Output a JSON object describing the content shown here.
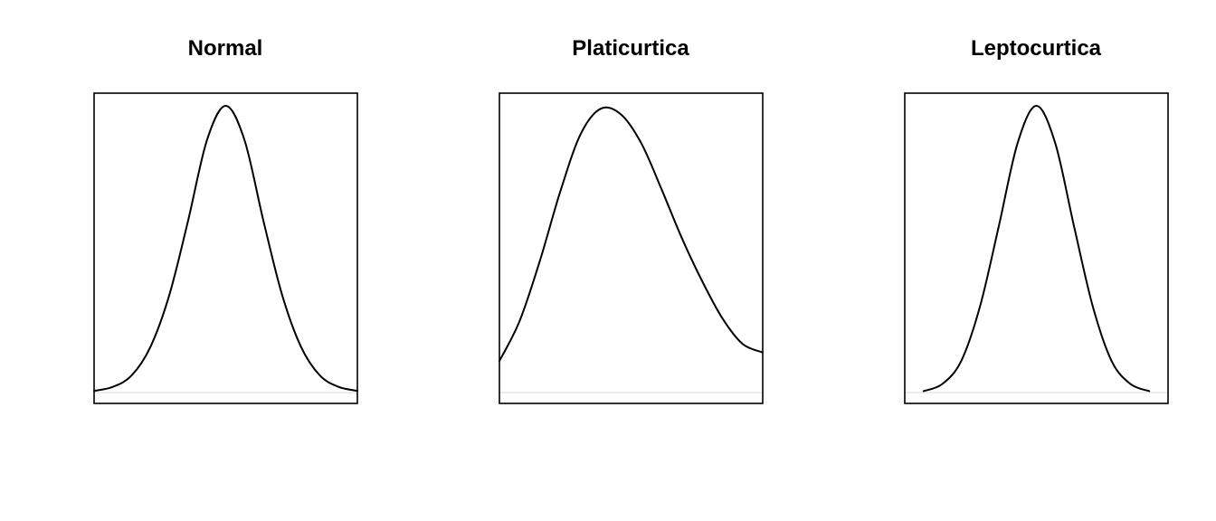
{
  "chart_data": [
    {
      "type": "line",
      "title": "Normal",
      "xlabel": "",
      "ylabel": "",
      "xlim": [
        -3.5,
        3.5
      ],
      "ylim": [
        0,
        1
      ],
      "grid": false,
      "series": [
        {
          "x": [
            -3.5,
            -3.0,
            -2.5,
            -2.0,
            -1.5,
            -1.0,
            -0.5,
            0.0,
            0.5,
            1.0,
            1.5,
            2.0,
            2.5,
            3.0,
            3.5
          ],
          "values": [
            0.006,
            0.02,
            0.06,
            0.16,
            0.34,
            0.6,
            0.88,
            1.0,
            0.88,
            0.6,
            0.34,
            0.16,
            0.06,
            0.02,
            0.006
          ]
        }
      ]
    },
    {
      "type": "line",
      "title": "Platicurtica",
      "xlabel": "",
      "ylabel": "",
      "xlim": [
        -3.0,
        3.5
      ],
      "ylim": [
        0,
        1
      ],
      "grid": false,
      "series": [
        {
          "x": [
            -3.0,
            -2.5,
            -2.0,
            -1.5,
            -1.0,
            -0.5,
            0.0,
            0.5,
            1.0,
            1.5,
            2.0,
            2.5,
            3.0,
            3.5
          ],
          "values": [
            0.11,
            0.25,
            0.46,
            0.7,
            0.9,
            0.99,
            0.97,
            0.87,
            0.71,
            0.54,
            0.39,
            0.26,
            0.17,
            0.14
          ]
        }
      ]
    },
    {
      "type": "line",
      "title": "Leptocurtica",
      "xlabel": "",
      "ylabel": "",
      "xlim": [
        -3.5,
        3.5
      ],
      "ylim": [
        0,
        1
      ],
      "grid": false,
      "series": [
        {
          "x": [
            -3.0,
            -2.5,
            -2.0,
            -1.5,
            -1.0,
            -0.5,
            0.0,
            0.5,
            1.0,
            1.5,
            2.0,
            2.5,
            3.0
          ],
          "values": [
            0.005,
            0.03,
            0.11,
            0.3,
            0.58,
            0.87,
            1.0,
            0.87,
            0.58,
            0.3,
            0.11,
            0.03,
            0.005
          ]
        }
      ]
    }
  ]
}
